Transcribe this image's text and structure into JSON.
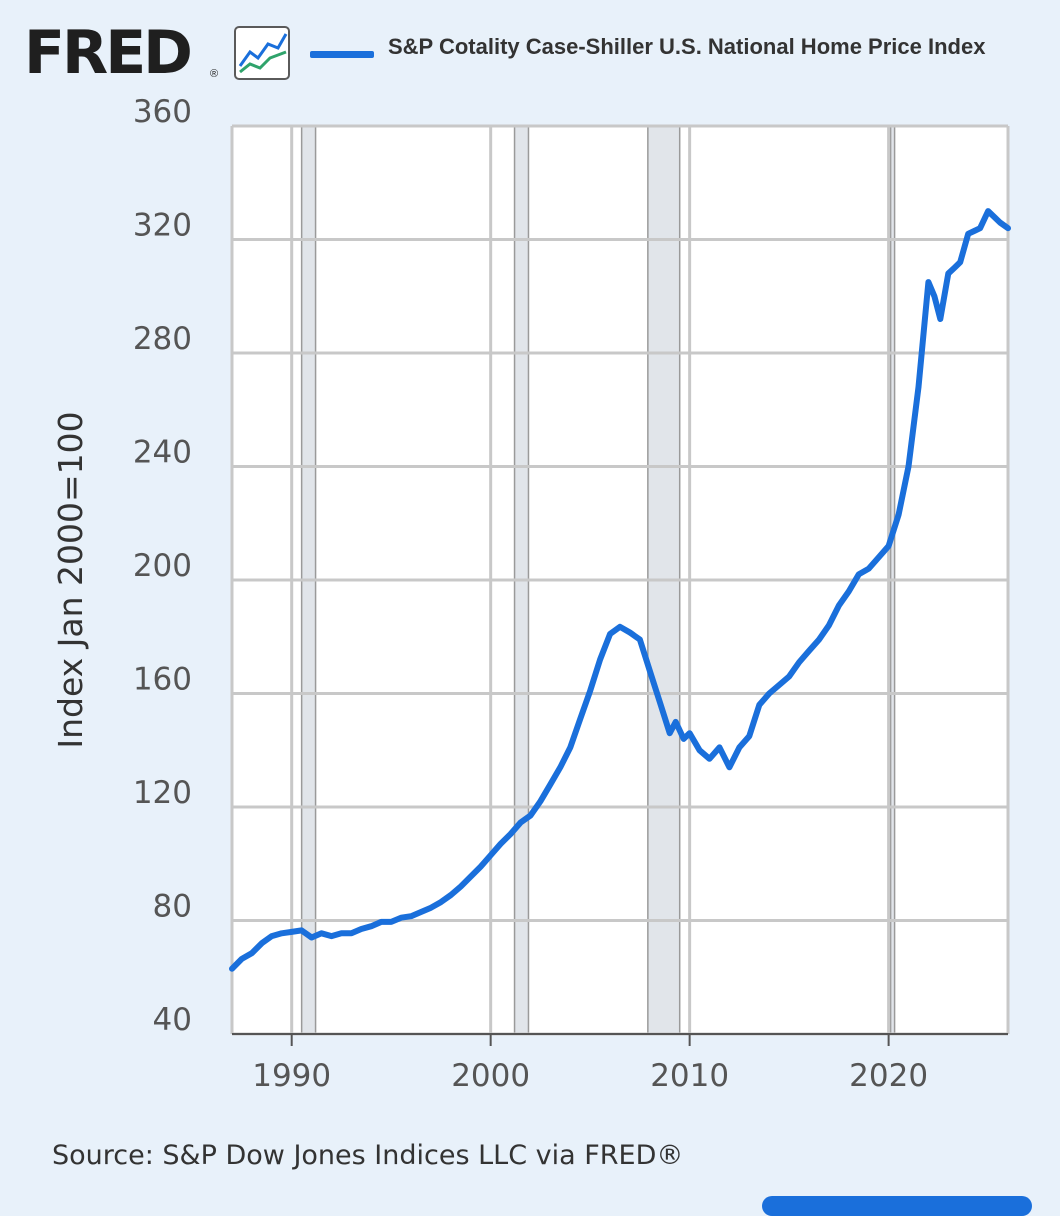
{
  "brand": {
    "logo_text": "FRED",
    "registered_mark": "®",
    "logo_icon": "line-chart-icon"
  },
  "source": "Source: S&P Dow Jones Indices LLC via FRED®",
  "colors": {
    "background": "#e8f1fa",
    "plot_background": "#ffffff",
    "series": "#1a6fdb",
    "recession_shade": "#e1e5ea",
    "grid": "#c8c8c8"
  },
  "chart_data": {
    "type": "line",
    "title": "",
    "xlabel": "",
    "ylabel": "Index Jan 2000=100",
    "xlim": [
      1987.0,
      2026.0
    ],
    "ylim": [
      40,
      360
    ],
    "x_ticks": [
      1990,
      2000,
      2010,
      2020
    ],
    "x_tick_labels": [
      "1990",
      "2000",
      "2010",
      "2020"
    ],
    "y_ticks": [
      40,
      80,
      120,
      160,
      200,
      240,
      280,
      320,
      360
    ],
    "y_tick_labels": [
      "40",
      "80",
      "120",
      "160",
      "200",
      "240",
      "280",
      "320",
      "360"
    ],
    "grid": true,
    "legend_position": "top",
    "recessions": [
      {
        "start": 1990.5,
        "end": 1991.2
      },
      {
        "start": 2001.2,
        "end": 2001.9
      },
      {
        "start": 2007.9,
        "end": 2009.5
      },
      {
        "start": 2020.1,
        "end": 2020.3
      }
    ],
    "series": [
      {
        "name": "S&P Cotality Case-Shiller U.S. National Home Price Index",
        "x": [
          1987.0,
          1987.5,
          1988.0,
          1988.5,
          1989.0,
          1989.5,
          1990.0,
          1990.5,
          1991.0,
          1991.5,
          1992.0,
          1992.5,
          1993.0,
          1993.5,
          1994.0,
          1994.5,
          1995.0,
          1995.5,
          1996.0,
          1996.5,
          1997.0,
          1997.5,
          1998.0,
          1998.5,
          1999.0,
          1999.5,
          2000.0,
          2000.5,
          2001.0,
          2001.5,
          2002.0,
          2002.5,
          2003.0,
          2003.5,
          2004.0,
          2004.5,
          2005.0,
          2005.5,
          2006.0,
          2006.5,
          2007.0,
          2007.5,
          2008.0,
          2008.5,
          2009.0,
          2009.3,
          2009.7,
          2010.0,
          2010.5,
          2011.0,
          2011.5,
          2012.0,
          2012.5,
          2013.0,
          2013.5,
          2014.0,
          2014.5,
          2015.0,
          2015.5,
          2016.0,
          2016.5,
          2017.0,
          2017.5,
          2018.0,
          2018.5,
          2019.0,
          2019.5,
          2020.0,
          2020.5,
          2021.0,
          2021.5,
          2022.0,
          2022.3,
          2022.6,
          2023.0,
          2023.3,
          2023.6,
          2024.0,
          2024.3,
          2024.6,
          2025.0,
          2025.3,
          2025.6,
          2026.0
        ],
        "values": [
          63.0,
          66.5,
          68.5,
          72.0,
          74.5,
          75.5,
          76.0,
          76.5,
          74.0,
          75.5,
          74.5,
          75.5,
          75.5,
          77.0,
          78.0,
          79.5,
          79.5,
          81.0,
          81.5,
          83.0,
          84.5,
          86.5,
          89.0,
          92.0,
          95.5,
          99.0,
          103.0,
          107.0,
          110.5,
          114.5,
          117.0,
          122.0,
          128.0,
          134.0,
          141.0,
          151.0,
          161.0,
          172.0,
          181.0,
          183.5,
          181.5,
          179.0,
          168.0,
          157.0,
          146.0,
          150.0,
          144.0,
          146.0,
          140.0,
          137.0,
          141.0,
          134.0,
          141.0,
          145.0,
          156.0,
          160.0,
          163.0,
          166.0,
          171.0,
          175.0,
          179.0,
          184.0,
          191.0,
          196.0,
          202.0,
          204.0,
          208.0,
          212.0,
          223.0,
          240.0,
          268.0,
          305.0,
          300.0,
          292.0,
          308.0,
          310.0,
          312.0,
          322.0,
          323.0,
          324.0,
          330.0,
          328.0,
          326.0,
          324.0
        ]
      }
    ]
  }
}
